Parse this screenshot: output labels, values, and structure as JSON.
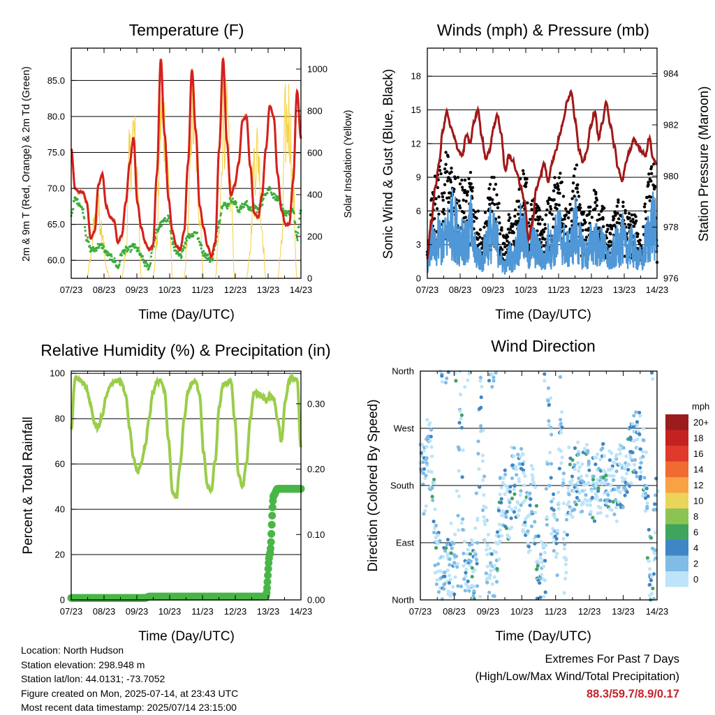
{
  "colors": {
    "temp_red": "#d42020",
    "temp_orange": "#f08020",
    "dewpoint_green": "#3aae3a",
    "insolation_yellow": "#f6d040",
    "gust_black": "#000000",
    "wind_blue": "#4f97d6",
    "pressure_maroon": "#a01818",
    "rh_green": "#9acd4a",
    "precip_green": "#49b647",
    "extremes_red": "#c4242b"
  },
  "speed_scale": {
    "unit": "mph",
    "labels": [
      "20+",
      "18",
      "16",
      "14",
      "12",
      "10",
      "8",
      "6",
      "4",
      "2",
      "0"
    ],
    "colors": [
      "#9b1c1c",
      "#c42222",
      "#e03a2a",
      "#f06a32",
      "#f8a244",
      "#ead45a",
      "#8cc454",
      "#3fa45e",
      "#3f86c4",
      "#80bce6",
      "#bde4f8"
    ]
  },
  "chart_data": [
    {
      "type": "line",
      "title": "Temperature (F)",
      "xlabel": "Time (Day/UTC)",
      "ylabel": "2m & 9m T (Red, Orange) & 2m Td (Green)",
      "y2label": "Solar Insolation (Yellow)",
      "x_ticks": [
        "07/23",
        "08/23",
        "09/23",
        "10/23",
        "11/23",
        "12/23",
        "13/23",
        "14/23"
      ],
      "y_ticks": [
        "60.0",
        "65.0",
        "70.0",
        "75.0",
        "80.0",
        "85.0"
      ],
      "y2_ticks": [
        "0",
        "200",
        "400",
        "600",
        "800",
        "1000"
      ],
      "ylim": [
        57.5,
        89.5
      ],
      "y2lim": [
        0,
        1100
      ],
      "grid": true,
      "series": [
        {
          "values": [
            75.5,
            70.0,
            69.5,
            69.5,
            68.0,
            63.0,
            64.0,
            70.5,
            72.0,
            67.5,
            66.0,
            65.5,
            62.5,
            63.5,
            68.0,
            73.5,
            77.0,
            68.0,
            64.5,
            62.5,
            61.5,
            62.0,
            72.0,
            88.0,
            77.5,
            68.5,
            64.0,
            62.0,
            61.5,
            64.0,
            73.5,
            86.5,
            78.0,
            67.5,
            64.5,
            62.0,
            60.5,
            62.5,
            75.5,
            88.0,
            76.5,
            69.0,
            70.5,
            73.5,
            79.5,
            80.0,
            73.0,
            66.5,
            66.0,
            69.0,
            75.5,
            81.5,
            80.0,
            72.0,
            67.0,
            65.0,
            65.0,
            71.0,
            83.5,
            77.0
          ]
        },
        {
          "values": [
            66.5,
            68.5,
            68.0,
            67.0,
            63.0,
            61.5,
            61.5,
            62.0,
            62.0,
            61.0,
            60.5,
            60.0,
            59.0,
            61.0,
            61.5,
            61.5,
            62.0,
            61.5,
            60.5,
            59.5,
            59.0,
            62.0,
            64.0,
            65.0,
            65.5,
            66.0,
            62.5,
            61.0,
            60.5,
            62.0,
            63.5,
            63.5,
            64.0,
            62.5,
            61.0,
            60.5,
            60.0,
            62.0,
            65.5,
            68.0,
            67.5,
            68.5,
            68.0,
            67.0,
            67.5,
            68.0,
            67.0,
            67.5,
            67.0,
            68.0,
            69.5,
            70.0,
            69.0,
            68.5,
            67.5,
            66.5,
            66.5,
            67.0,
            63.0,
            67.0
          ]
        },
        {
          "values": [
            0,
            0,
            0,
            0,
            0,
            120,
            360,
            400,
            300,
            60,
            0,
            0,
            0,
            0,
            140,
            700,
            850,
            600,
            0,
            0,
            0,
            0,
            220,
            950,
            900,
            600,
            0,
            0,
            0,
            0,
            300,
            1000,
            800,
            400,
            0,
            0,
            0,
            0,
            260,
            960,
            900,
            500,
            0,
            0,
            0,
            0,
            200,
            700,
            760,
            300,
            0,
            0,
            0,
            0,
            180,
            900,
            960,
            500,
            0,
            0
          ]
        }
      ]
    },
    {
      "type": "line",
      "title": "Winds (mph) & Pressure (mb)",
      "xlabel": "Time (Day/UTC)",
      "ylabel": "Sonic Wind & Gust (Blue, Black)",
      "y2label": "Station Pressure (Maroon)",
      "x_ticks": [
        "07/23",
        "08/23",
        "09/23",
        "10/23",
        "11/23",
        "12/23",
        "13/23",
        "14/23"
      ],
      "y_ticks": [
        "0",
        "3",
        "6",
        "9",
        "12",
        "15",
        "18"
      ],
      "y2_ticks": [
        "976",
        "978",
        "980",
        "982",
        "984"
      ],
      "ylim": [
        0,
        20.5
      ],
      "y2lim": [
        976,
        985
      ],
      "grid": true,
      "series": [
        {
          "values": [
            1.5,
            3.0,
            2.5,
            3.5,
            3.0,
            4.0,
            5.0,
            4.5,
            3.5,
            4.0,
            3.0,
            4.5,
            2.5,
            2.0,
            1.5,
            3.0,
            4.0,
            3.5,
            3.0,
            1.5,
            1.0,
            2.0,
            1.5,
            3.0,
            4.0,
            3.5,
            2.0,
            3.0,
            2.5,
            2.0,
            1.5,
            3.0,
            2.5,
            3.5,
            4.0,
            3.0,
            2.5,
            3.0,
            4.5,
            3.0,
            2.5,
            2.0,
            3.0,
            3.5,
            2.5,
            3.0,
            2.0,
            1.5,
            2.5,
            3.0,
            3.5,
            2.5,
            3.0,
            2.5,
            2.0,
            1.5,
            3.0,
            4.0,
            5.0,
            3.0
          ]
        },
        {
          "values": [
            3,
            6,
            8,
            9,
            8,
            10,
            9,
            9,
            8,
            8,
            7,
            8,
            6,
            5,
            3,
            5,
            7,
            8,
            6,
            4,
            3,
            5,
            4,
            6,
            8,
            9,
            5,
            6,
            6,
            5,
            4,
            6,
            6,
            8,
            8,
            6,
            5,
            6,
            9,
            6,
            5,
            5,
            6,
            7,
            5,
            6,
            4,
            4,
            5,
            6,
            6,
            5,
            5,
            5,
            4,
            3,
            6,
            8,
            9,
            4
          ]
        },
        {
          "values": [
            976.8,
            978.2,
            979.5,
            980.5,
            981.8,
            982.5,
            981.9,
            981.5,
            981.0,
            980.8,
            981.6,
            981.3,
            982.1,
            982.6,
            981.5,
            980.7,
            981.0,
            981.9,
            982.4,
            981.6,
            980.2,
            980.8,
            980.6,
            980.1,
            979.6,
            979.0,
            977.5,
            978.2,
            979.5,
            980.0,
            980.5,
            979.8,
            980.5,
            981.0,
            981.6,
            982.2,
            983.0,
            983.3,
            982.2,
            981.0,
            980.5,
            981.0,
            982.0,
            982.5,
            981.5,
            982.1,
            982.9,
            982.0,
            981.2,
            980.3,
            979.8,
            980.5,
            981.0,
            981.4,
            981.2,
            981.0,
            980.8,
            981.5,
            980.7,
            980.4
          ]
        }
      ]
    },
    {
      "type": "line",
      "title": "Relative Humidity (%) & Precipitation (in)",
      "xlabel": "Time (Day/UTC)",
      "ylabel": "Percent & Total Rainfall",
      "x_ticks": [
        "07/23",
        "08/23",
        "09/23",
        "10/23",
        "11/23",
        "12/23",
        "13/23",
        "14/23"
      ],
      "y_ticks": [
        "0",
        "20",
        "40",
        "60",
        "80",
        "100"
      ],
      "y2_ticks": [
        "0.00",
        "0.10",
        "0.20",
        "0.30"
      ],
      "ylim": [
        0,
        101
      ],
      "y2lim": [
        0,
        0.35
      ],
      "grid": true,
      "series": [
        {
          "values": [
            75,
            98,
            97,
            96,
            93,
            86,
            78,
            76,
            82,
            90,
            95,
            96,
            97,
            96,
            90,
            76,
            62,
            57,
            60,
            68,
            80,
            92,
            96,
            97,
            92,
            70,
            48,
            45,
            60,
            80,
            92,
            96,
            97,
            90,
            65,
            50,
            48,
            62,
            85,
            95,
            96,
            97,
            80,
            55,
            50,
            60,
            80,
            92,
            91,
            90,
            88,
            90,
            89,
            80,
            70,
            88,
            97,
            98,
            97,
            68
          ]
        },
        {
          "values": [
            0.003,
            0.003,
            0.003,
            0.003,
            0.003,
            0.003,
            0.003,
            0.003,
            0.003,
            0.003,
            0.003,
            0.003,
            0.003,
            0.003,
            0.003,
            0.003,
            0.003,
            0.003,
            0.003,
            0.003,
            0.005,
            0.005,
            0.005,
            0.005,
            0.005,
            0.005,
            0.005,
            0.005,
            0.005,
            0.005,
            0.005,
            0.005,
            0.005,
            0.005,
            0.005,
            0.005,
            0.005,
            0.005,
            0.005,
            0.005,
            0.005,
            0.005,
            0.005,
            0.005,
            0.005,
            0.005,
            0.005,
            0.005,
            0.005,
            0.005,
            0.005,
            0.07,
            0.16,
            0.17,
            0.17,
            0.17,
            0.17,
            0.17,
            0.17,
            0.17
          ]
        }
      ]
    },
    {
      "type": "scatter",
      "title": "Wind Direction",
      "xlabel": "Time (Day/UTC)",
      "ylabel": "Direction (Colored By Speed)",
      "x_ticks": [
        "07/23",
        "08/23",
        "09/23",
        "10/23",
        "11/23",
        "12/23",
        "13/23",
        "14/23"
      ],
      "y_ticks": [
        "North",
        "East",
        "South",
        "West",
        "North"
      ],
      "ylim": [
        0,
        360
      ],
      "grid": true,
      "series": [
        {
          "values": [
            200,
            180,
            250,
            190,
            60,
            40,
            30,
            50,
            70,
            30,
            360,
            20,
            40,
            55,
            60,
            350,
            100,
            40,
            20,
            50,
            150,
            160,
            130,
            200,
            170,
            200,
            150,
            100,
            180,
            60,
            40,
            30,
            320,
            120,
            70,
            330,
            50,
            200,
            175,
            210,
            180,
            200,
            190,
            180,
            170,
            185,
            200,
            180,
            190,
            175,
            200,
            180,
            215,
            240,
            250,
            230,
            195,
            60,
            40,
            160
          ]
        }
      ]
    }
  ],
  "footer": {
    "location": "Location: North Hudson",
    "elevation": "Station elevation: 298.948 m",
    "latlon": "Station lat/lon: 44.0131; -73.7052",
    "created": "Figure created on Mon, 2025-07-14, at 23:43 UTC",
    "recent": "Most recent data timestamp: 2025/07/14 23:15:00"
  },
  "extremes": {
    "title": "Extremes For Past 7 Days",
    "subtitle": "(High/Low/Max Wind/Total Precipitation)",
    "values": "88.3/59.7/8.9/0.17"
  }
}
